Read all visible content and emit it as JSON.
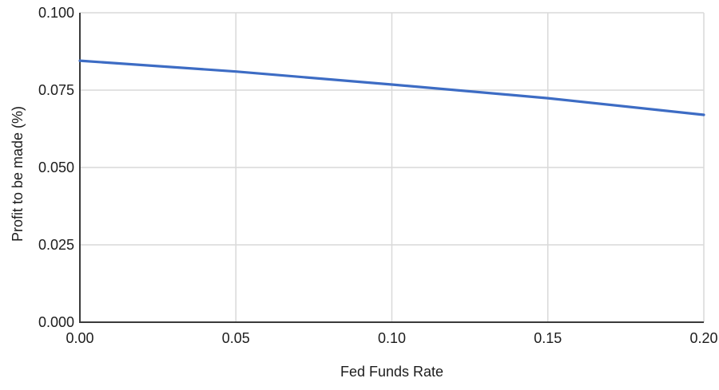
{
  "chart_data": {
    "type": "line",
    "title": "",
    "xlabel": "Fed Funds Rate",
    "ylabel": "Profit to be made (%)",
    "x": [
      0.0,
      0.05,
      0.1,
      0.15,
      0.2
    ],
    "y": [
      0.0845,
      0.081,
      0.0768,
      0.0724,
      0.067
    ],
    "x_tick_labels": [
      "0.00",
      "0.05",
      "0.10",
      "0.15",
      "0.20"
    ],
    "y_tick_labels": [
      "0.000",
      "0.025",
      "0.050",
      "0.075",
      "0.100"
    ],
    "x_tick_values": [
      0.0,
      0.05,
      0.1,
      0.15,
      0.2
    ],
    "y_tick_values": [
      0.0,
      0.025,
      0.05,
      0.075,
      0.1
    ],
    "xlim": [
      0.0,
      0.2
    ],
    "ylim": [
      0.0,
      0.1
    ],
    "grid": true,
    "legend": "none",
    "colors": {
      "line": "#3d6cc4",
      "grid": "#d9d9d9",
      "axis": "#3a3a3a",
      "text": "#1c1c1c",
      "background": "#ffffff"
    }
  }
}
